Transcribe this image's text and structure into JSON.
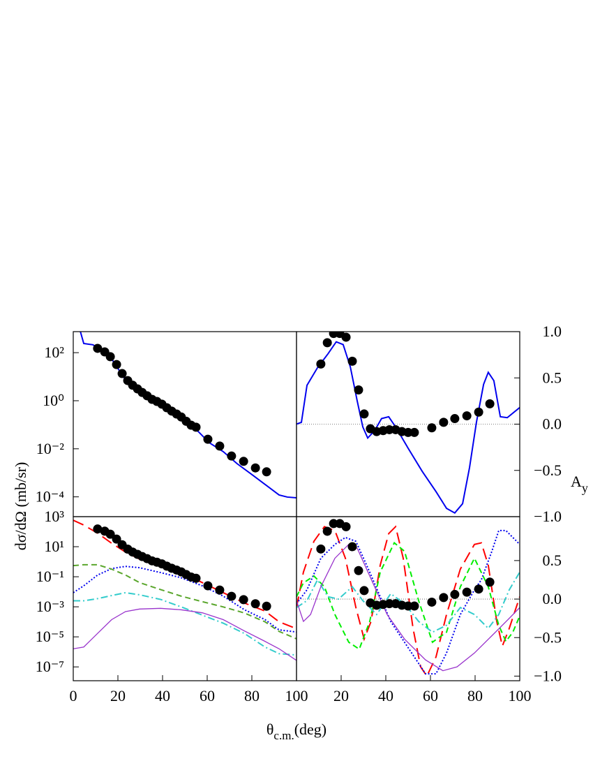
{
  "chart_data": [
    {
      "type": "line",
      "ylog": true,
      "y_axis_side": "left",
      "ylabel": "dσ/dΩ (mb/sr)",
      "xlim": [
        0,
        100
      ],
      "ylim": [
        1.5e-05,
        750
      ],
      "yticks": [
        {
          "value": 100,
          "label": "10²"
        },
        {
          "value": 1,
          "label": "10⁰"
        },
        {
          "value": 0.01,
          "label": "10⁻²"
        },
        {
          "value": 0.0001,
          "label": "10⁻⁴"
        }
      ],
      "series": [
        {
          "color": "#0000ee",
          "dash": "solid",
          "x": [
            3.1,
            4.7,
            8.8,
            12.5,
            17.2,
            20.3,
            23.4,
            26.6,
            29.7,
            34.4,
            39.1,
            45.3,
            51.6,
            56.3,
            60.9,
            67.2,
            73.4,
            79.7,
            85.9,
            92.2,
            95.9,
            100
          ],
          "values": [
            812,
            241,
            213,
            132,
            55,
            20,
            7.4,
            3.8,
            2.1,
            1.07,
            0.59,
            0.26,
            0.12,
            0.049,
            0.018,
            0.0076,
            0.0024,
            0.00089,
            0.00033,
            0.00012,
            9.8e-05,
            9.1e-05
          ]
        },
        {
          "marker": "circle",
          "color": "#000000",
          "x": [
            10.9,
            14.1,
            16.6,
            19.4,
            21.9,
            24.4,
            26.6,
            28.8,
            30.9,
            33.1,
            35.3,
            37.5,
            39.7,
            41.9,
            44.1,
            46.3,
            48.4,
            50.6,
            52.8,
            55,
            60.3,
            65.6,
            70.9,
            76.3,
            81.6,
            86.6
          ],
          "values": [
            151,
            108,
            68,
            32,
            13.5,
            6.9,
            4.4,
            3.1,
            2.2,
            1.6,
            1.14,
            0.93,
            0.72,
            0.51,
            0.37,
            0.28,
            0.21,
            0.14,
            0.096,
            0.079,
            0.025,
            0.013,
            0.005,
            0.003,
            0.0016,
            0.0011
          ]
        }
      ]
    },
    {
      "type": "line",
      "ylog": false,
      "y_axis_side": "right",
      "ylabel": [
        "A",
        "y"
      ],
      "zero_line": true,
      "xlim": [
        0,
        100
      ],
      "ylim": [
        -1.0,
        1.0
      ],
      "yticks": [
        {
          "value": 1.0,
          "label": "1.0"
        },
        {
          "value": 0.5,
          "label": "0.5"
        },
        {
          "value": 0.0,
          "label": "0.0"
        },
        {
          "value": -0.5,
          "label": "−0.5"
        },
        {
          "value": -1.0,
          "label": "−1.0"
        }
      ],
      "series": [
        {
          "color": "#0000ee",
          "dash": "solid",
          "x": [
            0,
            2.2,
            4.7,
            9.4,
            14.1,
            17.8,
            20.9,
            24.1,
            27.2,
            29.7,
            31.9,
            35,
            38.1,
            41.3,
            44.4,
            50,
            56.3,
            62.5,
            67.2,
            70.9,
            74.4,
            77.5,
            80.6,
            83.8,
            85.9,
            88.4,
            91.3,
            94.4,
            100
          ],
          "values": [
            0,
            0.02,
            0.42,
            0.61,
            0.76,
            0.89,
            0.86,
            0.62,
            0.25,
            -0.03,
            -0.15,
            -0.07,
            0.06,
            0.08,
            -0.03,
            -0.26,
            -0.51,
            -0.73,
            -0.91,
            -0.96,
            -0.86,
            -0.47,
            0.02,
            0.43,
            0.56,
            0.47,
            0.08,
            0.07,
            0.18
          ]
        },
        {
          "marker": "circle",
          "color": "#000000",
          "x": [
            10.9,
            13.8,
            16.6,
            19.4,
            22.2,
            25,
            27.8,
            30.3,
            33.1,
            35.9,
            38.8,
            41.6,
            44.4,
            47.2,
            50,
            52.8,
            60.6,
            65.9,
            70.9,
            76.3,
            81.6,
            86.6
          ],
          "values": [
            0.65,
            0.88,
            0.98,
            0.98,
            0.94,
            0.68,
            0.37,
            0.11,
            -0.05,
            -0.08,
            -0.07,
            -0.06,
            -0.06,
            -0.08,
            -0.09,
            -0.09,
            -0.04,
            0.02,
            0.06,
            0.09,
            0.13,
            0.22
          ]
        }
      ]
    },
    {
      "type": "line",
      "ylog": true,
      "y_axis_side": "left",
      "xlabel": [
        "θ",
        "c.m.",
        "(deg)"
      ],
      "xlim": [
        0,
        100
      ],
      "ylim": [
        1.2e-08,
        1000
      ],
      "xticks": [
        0,
        20,
        40,
        60,
        80,
        100
      ],
      "yticks": [
        {
          "value": 1000,
          "label": "10³"
        },
        {
          "value": 10,
          "label": "10¹"
        },
        {
          "value": 0.1,
          "label": "10⁻¹"
        },
        {
          "value": 0.001,
          "label": "10⁻³"
        },
        {
          "value": 1e-05,
          "label": "10⁻⁵"
        },
        {
          "value": 1e-07,
          "label": "10⁻⁷"
        }
      ],
      "series": [
        {
          "color": "#ff0000",
          "dash": "long-dash",
          "x": [
            0,
            4.7,
            10.9,
            17.2,
            23.4,
            29.7,
            39.1,
            48.4,
            57.8,
            67.2,
            76.6,
            85.9,
            92.2,
            100
          ],
          "values": [
            575,
            275,
            79,
            17,
            4.4,
            1.5,
            0.55,
            0.19,
            0.041,
            0.0087,
            0.0018,
            0.00052,
            0.0001,
            3.5e-05
          ]
        },
        {
          "color": "#0000ee",
          "dash": "dotted",
          "x": [
            0,
            4.7,
            10.9,
            17.2,
            23.4,
            29.7,
            39.1,
            48.4,
            57.8,
            67.2,
            76.6,
            85.9,
            92.2,
            100
          ],
          "values": [
            0.0087,
            0.025,
            0.13,
            0.35,
            0.49,
            0.4,
            0.19,
            0.085,
            0.025,
            0.0051,
            0.00065,
            0.00014,
            2.9e-05,
            2.1e-05
          ]
        },
        {
          "color": "#5aa62c",
          "dash": "dashed",
          "x": [
            0,
            4.7,
            10.9,
            17.2,
            23.4,
            29.7,
            39.1,
            48.4,
            57.8,
            67.2,
            76.6,
            85.9,
            92.2,
            100
          ],
          "values": [
            0.55,
            0.63,
            0.63,
            0.32,
            0.13,
            0.041,
            0.014,
            0.0051,
            0.0022,
            0.00098,
            0.00039,
            0.0001,
            2.3e-05,
            7.4e-06
          ]
        },
        {
          "color": "#33cccc",
          "dash": "dash-dot",
          "x": [
            0,
            4.7,
            10.9,
            17.2,
            23.4,
            29.7,
            39.1,
            48.4,
            57.8,
            67.2,
            76.6,
            85.9,
            92.2,
            100
          ],
          "values": [
            0.0025,
            0.0025,
            0.0035,
            0.0056,
            0.0087,
            0.0063,
            0.0031,
            0.00098,
            0.00028,
            8.1e-05,
            1.7e-05,
            2.1e-06,
            7.6e-07,
            6.2e-07
          ]
        },
        {
          "color": "#9933cc",
          "dash": "solid",
          "x": [
            0,
            4.7,
            10.9,
            17.2,
            23.4,
            29.7,
            39.1,
            48.4,
            57.8,
            67.2,
            76.6,
            85.9,
            92.2,
            100
          ],
          "values": [
            1.6e-06,
            2.1e-06,
            1.7e-05,
            0.00014,
            0.00048,
            0.00071,
            0.00079,
            0.00063,
            0.0004,
            0.00014,
            2.5e-05,
            5e-06,
            1.6e-06,
            2.7e-07
          ]
        },
        {
          "marker": "circle",
          "color": "#000000",
          "x": [
            10.9,
            14.1,
            16.6,
            19.4,
            21.9,
            24.4,
            26.6,
            28.8,
            30.9,
            33.1,
            35.3,
            37.5,
            39.7,
            41.9,
            44.1,
            46.3,
            48.4,
            50.6,
            52.8,
            55,
            60.3,
            65.6,
            70.9,
            76.3,
            81.6,
            86.6
          ],
          "values": [
            151,
            108,
            68,
            32,
            13.5,
            6.9,
            4.4,
            3.1,
            2.2,
            1.6,
            1.14,
            0.93,
            0.72,
            0.51,
            0.37,
            0.28,
            0.21,
            0.14,
            0.096,
            0.079,
            0.025,
            0.013,
            0.005,
            0.003,
            0.0016,
            0.0011
          ]
        }
      ]
    },
    {
      "type": "line",
      "ylog": false,
      "y_axis_side": "right",
      "zero_line": true,
      "xlim": [
        0,
        100
      ],
      "ylim": [
        -1.06,
        1.07
      ],
      "xticks": [
        20,
        40,
        60,
        80,
        100
      ],
      "yticks": [
        {
          "value": 0.5,
          "label": "0.5"
        },
        {
          "value": 0.0,
          "label": "0.0"
        },
        {
          "value": -0.5,
          "label": "−0.5"
        },
        {
          "value": -1.0,
          "label": "−1.0"
        }
      ],
      "series": [
        {
          "color": "#ff0000",
          "dash": "long-dash",
          "x": [
            0,
            3.1,
            7.8,
            12.5,
            17.2,
            21.9,
            26.6,
            30.3,
            33.4,
            37.5,
            41.3,
            44.4,
            47.8,
            52.2,
            55.6,
            58.4,
            62.5,
            67.2,
            73.4,
            79.7,
            82.8,
            85.9,
            89.7,
            92.2,
            95.3,
            100
          ],
          "values": [
            -0.11,
            0.35,
            0.75,
            0.94,
            0.89,
            0.53,
            -0.11,
            -0.52,
            -0.29,
            0.44,
            0.85,
            0.94,
            0.53,
            -0.38,
            -0.88,
            -1.0,
            -0.75,
            -0.2,
            0.39,
            0.71,
            0.73,
            0.44,
            -0.29,
            -0.61,
            -0.38,
            0.03
          ]
        },
        {
          "color": "#0000ee",
          "dash": "dotted",
          "x": [
            0,
            4.7,
            10.9,
            17.2,
            21.9,
            26.6,
            32.8,
            42.2,
            51.6,
            57.8,
            62.5,
            67.2,
            73.4,
            79.7,
            82.8,
            87.5,
            90.6,
            93.8,
            96.9,
            100
          ],
          "values": [
            -0.06,
            0.12,
            0.53,
            0.71,
            0.8,
            0.75,
            0.35,
            -0.29,
            -0.7,
            -0.97,
            -0.97,
            -0.7,
            -0.2,
            0.12,
            0.25,
            0.62,
            0.89,
            0.89,
            0.8,
            0.71
          ]
        },
        {
          "color": "#00ee00",
          "dash": "dashed",
          "x": [
            0,
            3.1,
            7.8,
            12.5,
            17.2,
            23.4,
            28.1,
            32.8,
            37.5,
            43.8,
            48.4,
            54.7,
            60.9,
            67.2,
            73.4,
            79.7,
            85.9,
            90.6,
            93.8,
            96.9,
            100
          ],
          "values": [
            0.03,
            0.21,
            0.3,
            0.16,
            -0.2,
            -0.56,
            -0.65,
            -0.29,
            0.35,
            0.73,
            0.62,
            -0.02,
            -0.56,
            -0.43,
            0.16,
            0.53,
            0.16,
            -0.34,
            -0.55,
            -0.43,
            -0.22
          ]
        },
        {
          "color": "#33cccc",
          "dash": "dash-dot",
          "x": [
            0,
            4.7,
            9.4,
            14.1,
            18.8,
            25,
            29.7,
            35.9,
            42.2,
            48.4,
            54.7,
            60.9,
            67.2,
            73.4,
            79.7,
            85.9,
            90.6,
            95.3,
            100
          ],
          "values": [
            -0.11,
            -0.02,
            0.25,
            0.03,
            0,
            0.16,
            -0.02,
            -0.2,
            0.07,
            -0.06,
            -0.29,
            -0.43,
            -0.34,
            -0.11,
            -0.2,
            -0.38,
            -0.2,
            0.12,
            0.35
          ]
        },
        {
          "color": "#9933cc",
          "dash": "solid",
          "x": [
            0,
            3.1,
            6.3,
            10.9,
            17.2,
            23.4,
            27.2,
            32.8,
            40.6,
            48.4,
            57.8,
            65.6,
            71.9,
            79.7,
            89.1,
            95.3,
            100
          ],
          "values": [
            -0.02,
            -0.29,
            -0.2,
            0.16,
            0.53,
            0.71,
            0.66,
            0.3,
            -0.2,
            -0.52,
            -0.79,
            -0.93,
            -0.88,
            -0.7,
            -0.43,
            -0.25,
            -0.11
          ]
        },
        {
          "marker": "circle",
          "color": "#000000",
          "x": [
            10.9,
            13.8,
            16.6,
            19.4,
            22.2,
            25,
            27.8,
            30.3,
            33.1,
            35.9,
            38.8,
            41.6,
            44.4,
            47.2,
            50,
            52.8,
            60.6,
            65.9,
            70.9,
            76.3,
            81.6,
            86.6
          ],
          "values": [
            0.65,
            0.88,
            0.98,
            0.98,
            0.94,
            0.68,
            0.37,
            0.11,
            -0.05,
            -0.08,
            -0.07,
            -0.06,
            -0.06,
            -0.08,
            -0.09,
            -0.09,
            -0.04,
            0.02,
            0.06,
            0.09,
            0.13,
            0.22
          ]
        }
      ]
    }
  ]
}
